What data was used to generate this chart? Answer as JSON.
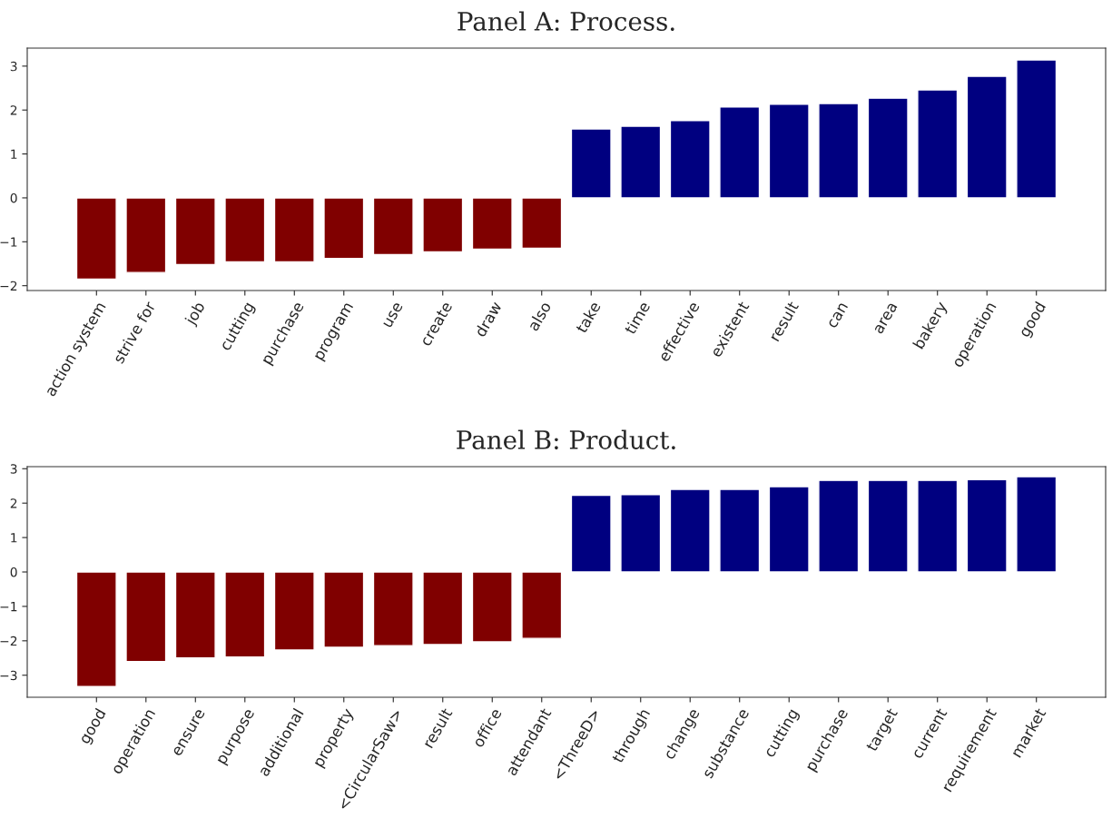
{
  "chart_data": [
    {
      "type": "bar",
      "title": "Panel A: Process.",
      "categories": [
        "action system",
        "strive for",
        "job",
        "cutting",
        "purchase",
        "program",
        "use",
        "create",
        "draw",
        "also",
        "take",
        "time",
        "effective",
        "existent",
        "result",
        "can",
        "area",
        "bakery",
        "operation",
        "good"
      ],
      "values": [
        -1.85,
        -1.7,
        -1.52,
        -1.46,
        -1.46,
        -1.38,
        -1.29,
        -1.23,
        -1.17,
        -1.15,
        1.57,
        1.63,
        1.76,
        2.07,
        2.13,
        2.15,
        2.27,
        2.46,
        2.77,
        3.14
      ],
      "colors": [
        "#800000",
        "#800000",
        "#800000",
        "#800000",
        "#800000",
        "#800000",
        "#800000",
        "#800000",
        "#800000",
        "#800000",
        "#000080",
        "#000080",
        "#000080",
        "#000080",
        "#000080",
        "#000080",
        "#000080",
        "#000080",
        "#000080",
        "#000080"
      ],
      "ylim": [
        -2.11,
        3.41
      ],
      "yticks": [
        -2,
        -1,
        0,
        1,
        2,
        3
      ],
      "grid": false,
      "legend": false
    },
    {
      "type": "bar",
      "title": "Panel B: Product.",
      "categories": [
        "good",
        "operation",
        "ensure",
        "purpose",
        "additional",
        "property",
        "<CircularSaw>",
        "result",
        "office",
        "attendant",
        "<ThreeD>",
        "through",
        "change",
        "substance",
        "cutting",
        "purchase",
        "target",
        "current",
        "requirement",
        "market"
      ],
      "values": [
        -3.33,
        -2.6,
        -2.5,
        -2.47,
        -2.27,
        -2.19,
        -2.14,
        -2.11,
        -2.03,
        -1.93,
        2.23,
        2.25,
        2.4,
        2.4,
        2.48,
        2.66,
        2.66,
        2.66,
        2.68,
        2.77
      ],
      "colors": [
        "#800000",
        "#800000",
        "#800000",
        "#800000",
        "#800000",
        "#800000",
        "#800000",
        "#800000",
        "#800000",
        "#800000",
        "#000080",
        "#000080",
        "#000080",
        "#000080",
        "#000080",
        "#000080",
        "#000080",
        "#000080",
        "#000080",
        "#000080"
      ],
      "ylim": [
        -3.64,
        3.06
      ],
      "yticks": [
        -3,
        -2,
        -1,
        0,
        1,
        2,
        3
      ],
      "grid": false,
      "legend": false
    }
  ]
}
